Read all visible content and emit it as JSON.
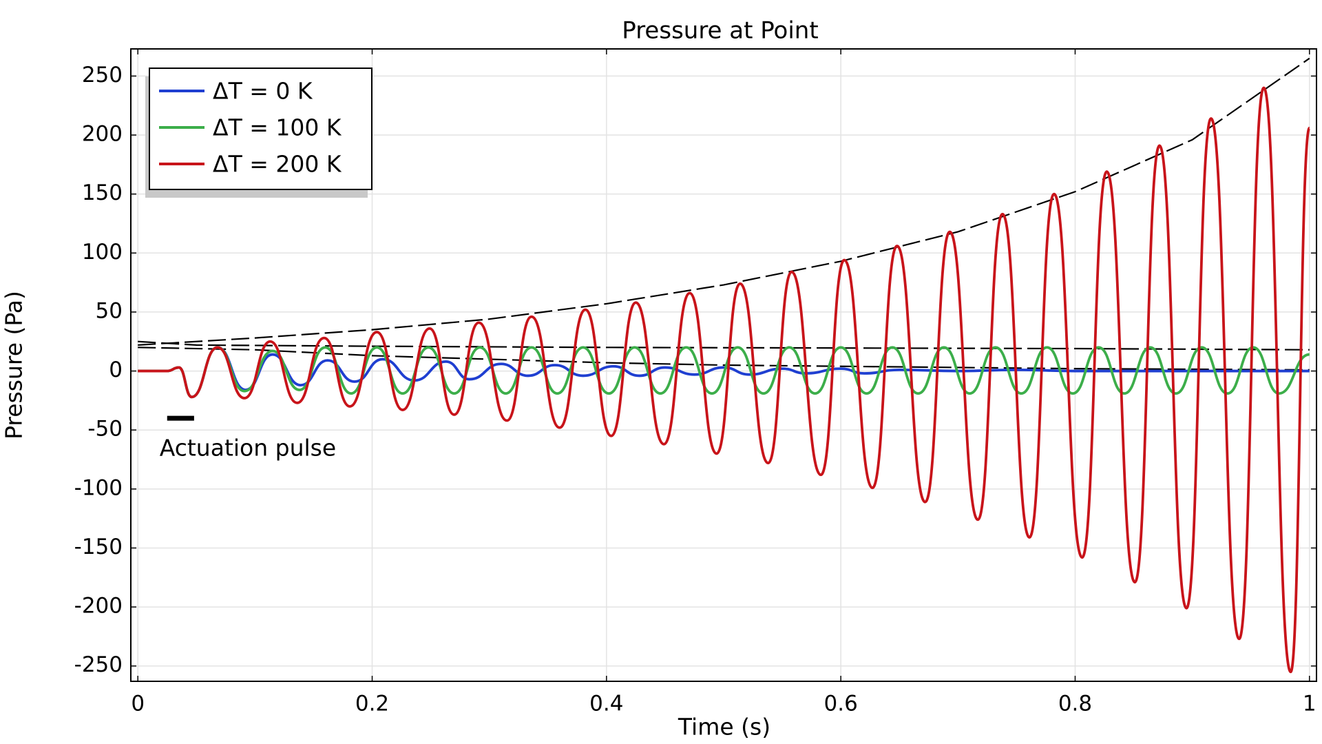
{
  "chart_data": {
    "type": "line",
    "title": "Pressure at Point",
    "xlabel": "Time (s)",
    "ylabel": "Pressure (Pa)",
    "xlim": [
      -0.006,
      1.006
    ],
    "ylim": [
      -263,
      273
    ],
    "xticks": [
      0,
      0.2,
      0.4,
      0.6,
      0.8,
      1
    ],
    "yticks": [
      -250,
      -200,
      -150,
      -100,
      -50,
      0,
      50,
      100,
      150,
      200,
      250
    ],
    "grid": true,
    "legend": "upper left",
    "series": [
      {
        "name": "ΔT = 0 K",
        "color": "#1f3fd1",
        "x": [
          0,
          0.025,
          0.035,
          0.046,
          0.068,
          0.092,
          0.115,
          0.139,
          0.162,
          0.185,
          0.209,
          0.236,
          0.263,
          0.283,
          0.31,
          0.333,
          0.356,
          0.38,
          0.406,
          0.428,
          0.45,
          0.475,
          0.5,
          0.522,
          0.55,
          0.57,
          0.6,
          0.62,
          0.65,
          0.7,
          0.75,
          0.8,
          0.85,
          0.9,
          0.95,
          1.0
        ],
        "values": [
          0,
          0,
          3,
          -22,
          20,
          -16,
          14,
          -12,
          9,
          -9,
          10,
          -8,
          8,
          -7,
          6,
          -4,
          5,
          -4,
          4,
          -4,
          3,
          -3,
          3,
          -3,
          2,
          -2,
          2,
          -2,
          1,
          0,
          1,
          0,
          0,
          0,
          0,
          0
        ]
      },
      {
        "name": "ΔT = 100 K",
        "color": "#3cae4a",
        "x": [
          0,
          0.025,
          0.035,
          0.046,
          0.068,
          0.091,
          0.115,
          0.138,
          0.16,
          0.182,
          0.204,
          0.226,
          0.248,
          0.27,
          0.292,
          0.314,
          0.336,
          0.358,
          0.38,
          0.402,
          0.424,
          0.446,
          0.468,
          0.49,
          0.512,
          0.534,
          0.556,
          0.578,
          0.6,
          0.622,
          0.644,
          0.666,
          0.688,
          0.71,
          0.732,
          0.754,
          0.776,
          0.798,
          0.82,
          0.842,
          0.864,
          0.886,
          0.908,
          0.93,
          0.952,
          0.974,
          1.0
        ],
        "values": [
          0,
          0,
          3,
          -22,
          20,
          -17,
          17,
          -16,
          20,
          -19,
          20,
          -19,
          20,
          -19,
          20,
          -19,
          20,
          -19,
          20,
          -19,
          20,
          -19,
          20,
          -19,
          20,
          -19,
          20,
          -19,
          20,
          -19,
          20,
          -19,
          20,
          -19,
          20,
          -19,
          20,
          -19,
          20,
          -19,
          20,
          -19,
          20,
          -19,
          20,
          -19,
          14
        ]
      },
      {
        "name": "ΔT = 200 K",
        "color": "#c8141a",
        "x": [
          0,
          0.025,
          0.035,
          0.046,
          0.068,
          0.091,
          0.113,
          0.136,
          0.159,
          0.181,
          0.204,
          0.226,
          0.249,
          0.27,
          0.291,
          0.315,
          0.336,
          0.36,
          0.382,
          0.404,
          0.425,
          0.449,
          0.471,
          0.494,
          0.514,
          0.538,
          0.558,
          0.583,
          0.603,
          0.627,
          0.648,
          0.672,
          0.693,
          0.717,
          0.738,
          0.761,
          0.782,
          0.806,
          0.827,
          0.851,
          0.872,
          0.895,
          0.916,
          0.94,
          0.961,
          0.984,
          1.0
        ],
        "values": [
          0,
          0,
          3,
          -22,
          20,
          -23,
          25,
          -27,
          28,
          -30,
          33,
          -33,
          36,
          -37,
          41,
          -42,
          46,
          -48,
          52,
          -55,
          58,
          -62,
          66,
          -70,
          74,
          -78,
          84,
          -88,
          94,
          -99,
          106,
          -111,
          118,
          -126,
          133,
          -141,
          150,
          -158,
          169,
          -179,
          191,
          -201,
          214,
          -227,
          240,
          -255,
          206
        ]
      }
    ],
    "envelopes": [
      {
        "color": "#000000",
        "x": [
          0,
          0.1,
          0.2,
          0.3,
          0.4,
          0.5,
          0.6,
          0.7,
          0.8,
          0.9,
          1.0
        ],
        "values": [
          22,
          28,
          35,
          44,
          57,
          73,
          93,
          118,
          152,
          196,
          265
        ]
      },
      {
        "color": "#000000",
        "x": [
          0,
          0.05,
          0.2,
          0.4,
          0.6,
          0.8,
          1.0
        ],
        "values": [
          25,
          22,
          21,
          20,
          19.5,
          19,
          18
        ]
      },
      {
        "color": "#000000",
        "x": [
          0,
          0.1,
          0.2,
          0.3,
          0.4,
          0.5,
          0.6,
          0.7,
          0.8,
          0.9,
          1.0
        ],
        "values": [
          20,
          18,
          13,
          10,
          7,
          5,
          4,
          3,
          2,
          1.5,
          1
        ]
      }
    ],
    "pulse": {
      "x": [
        0.025,
        0.048
      ],
      "y": -40,
      "label": "Actuation pulse"
    }
  }
}
